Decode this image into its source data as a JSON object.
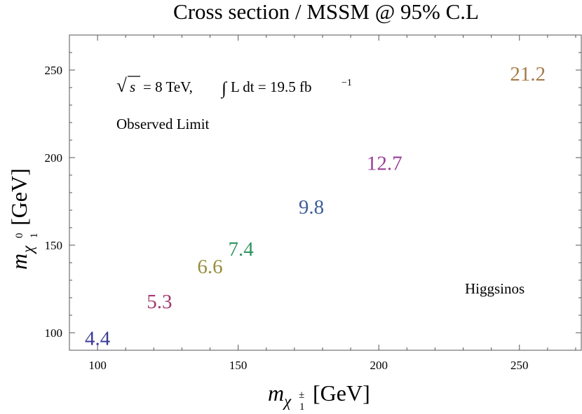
{
  "chart_data": {
    "type": "scatter",
    "title": "Cross section / MSSM @ 95% C.L",
    "xlabel": {
      "symbol": "m",
      "sub": "χ",
      "subsub": "1",
      "sup": "±",
      "unit": "[GeV]"
    },
    "ylabel": {
      "symbol": "m",
      "sub": "χ",
      "subsub": "1",
      "sup": "0",
      "unit": "[GeV]"
    },
    "xlim": [
      90,
      272
    ],
    "ylim": [
      90,
      270
    ],
    "xticks": [
      100,
      150,
      200,
      250
    ],
    "yticks": [
      100,
      150,
      200,
      250
    ],
    "x_minor_step": 10,
    "y_minor_step": 10,
    "grid": false,
    "annotations": {
      "energy": {
        "sqrt": "√",
        "s": "s",
        "eq": "= 8 TeV, ",
        "integral": "∫",
        "lumi": "L dt = 19.5 fb",
        "exp": "−1"
      },
      "limit_type": "Observed Limit",
      "model": "Higgsinos"
    },
    "points": [
      {
        "x": 100,
        "y": 97,
        "label": "4.4",
        "color": "#3c3c96"
      },
      {
        "x": 122,
        "y": 118,
        "label": "5.3",
        "color": "#a33a6e"
      },
      {
        "x": 140,
        "y": 138,
        "label": "6.6",
        "color": "#978e3e"
      },
      {
        "x": 151,
        "y": 148,
        "label": "7.4",
        "color": "#2f9560"
      },
      {
        "x": 176,
        "y": 172,
        "label": "9.8",
        "color": "#3e5e98"
      },
      {
        "x": 202,
        "y": 197,
        "label": "12.7",
        "color": "#9a3d98"
      },
      {
        "x": 253,
        "y": 248,
        "label": "21.2",
        "color": "#a47a48"
      }
    ]
  }
}
